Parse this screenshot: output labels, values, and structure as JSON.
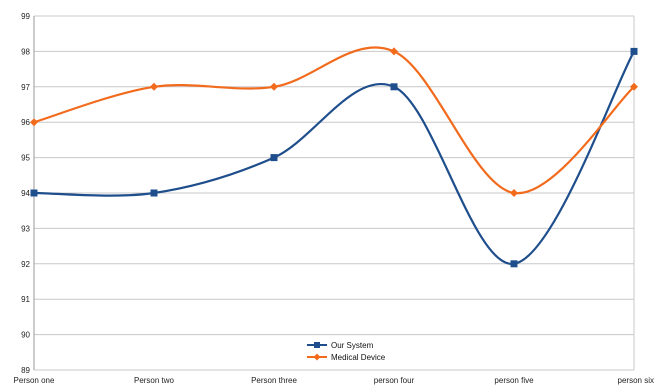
{
  "chart_data": {
    "type": "line",
    "categories": [
      "Person one",
      "Person two",
      "Person three",
      "person four",
      "person five",
      "person six"
    ],
    "series": [
      {
        "name": "Our System",
        "values": [
          94,
          94,
          95,
          97,
          92,
          98
        ],
        "color": "#1f4e8c",
        "marker": "square"
      },
      {
        "name": "Medical Device",
        "values": [
          96,
          97,
          97,
          98,
          94,
          97
        ],
        "color": "#f26b1d",
        "marker": "diamond"
      }
    ],
    "ylim": [
      89,
      99
    ],
    "yticks": [
      89,
      90,
      91,
      92,
      93,
      94,
      95,
      96,
      97,
      98,
      99
    ],
    "grid": true,
    "smooth": true,
    "legend_position": "bottom-center",
    "title": "",
    "xlabel": "",
    "ylabel": ""
  }
}
